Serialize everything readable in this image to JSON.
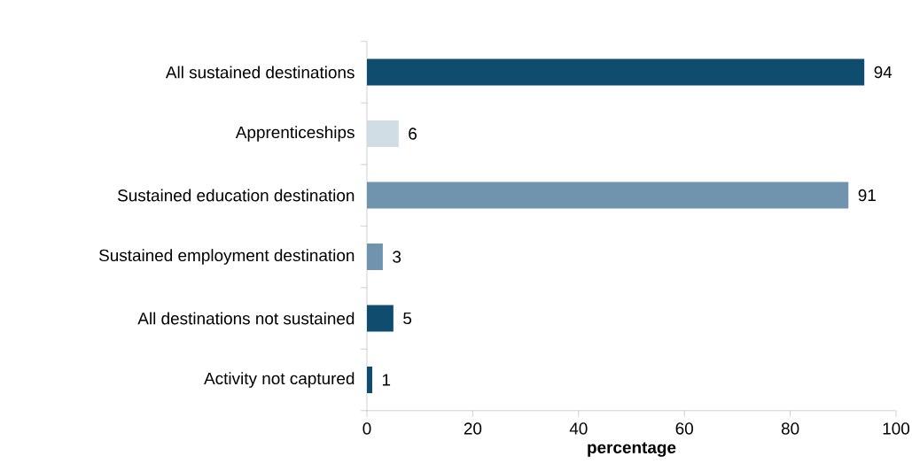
{
  "chart_data": {
    "type": "bar",
    "orientation": "horizontal",
    "xlabel": "percentage",
    "categories": [
      "All sustained destinations",
      "Apprenticeships",
      "Sustained education destination",
      "Sustained employment destination",
      "All destinations not sustained",
      "Activity not captured"
    ],
    "values": [
      94,
      6,
      91,
      3,
      5,
      1
    ],
    "colors": [
      "#0f4c6e",
      "#d0dde5",
      "#7094ae",
      "#7094ae",
      "#0f4c6e",
      "#0f4c6e"
    ],
    "xlim": [
      0,
      100
    ],
    "xticks": [
      0,
      20,
      40,
      60,
      80,
      100
    ],
    "grid": false,
    "data_labels": true
  }
}
